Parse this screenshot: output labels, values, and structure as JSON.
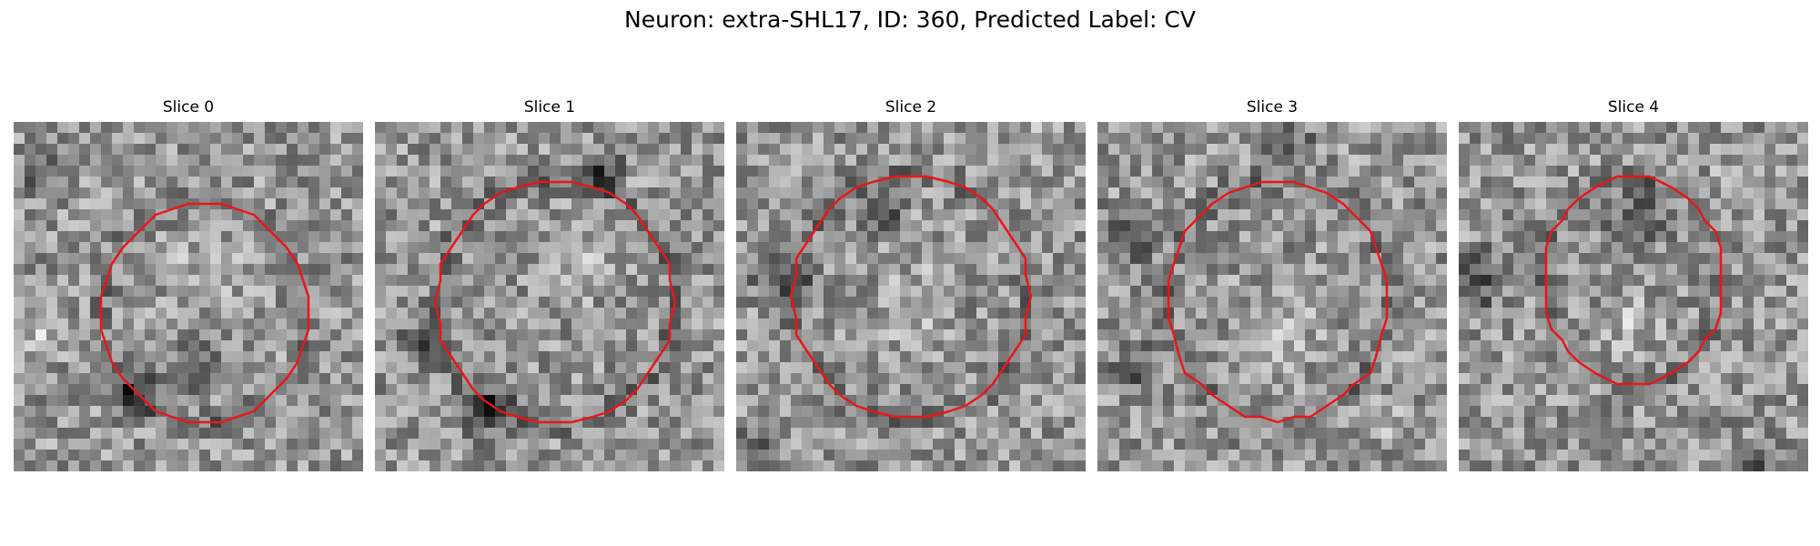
{
  "figure": {
    "title": "Neuron: extra-SHL17, ID: 360, Predicted Label: CV"
  },
  "panels": [
    {
      "title": "Slice 0"
    },
    {
      "title": "Slice 1"
    },
    {
      "title": "Slice 2"
    },
    {
      "title": "Slice 3"
    },
    {
      "title": "Slice 4"
    }
  ],
  "colors": {
    "contour": "#e8161b",
    "background": "#ffffff"
  }
}
